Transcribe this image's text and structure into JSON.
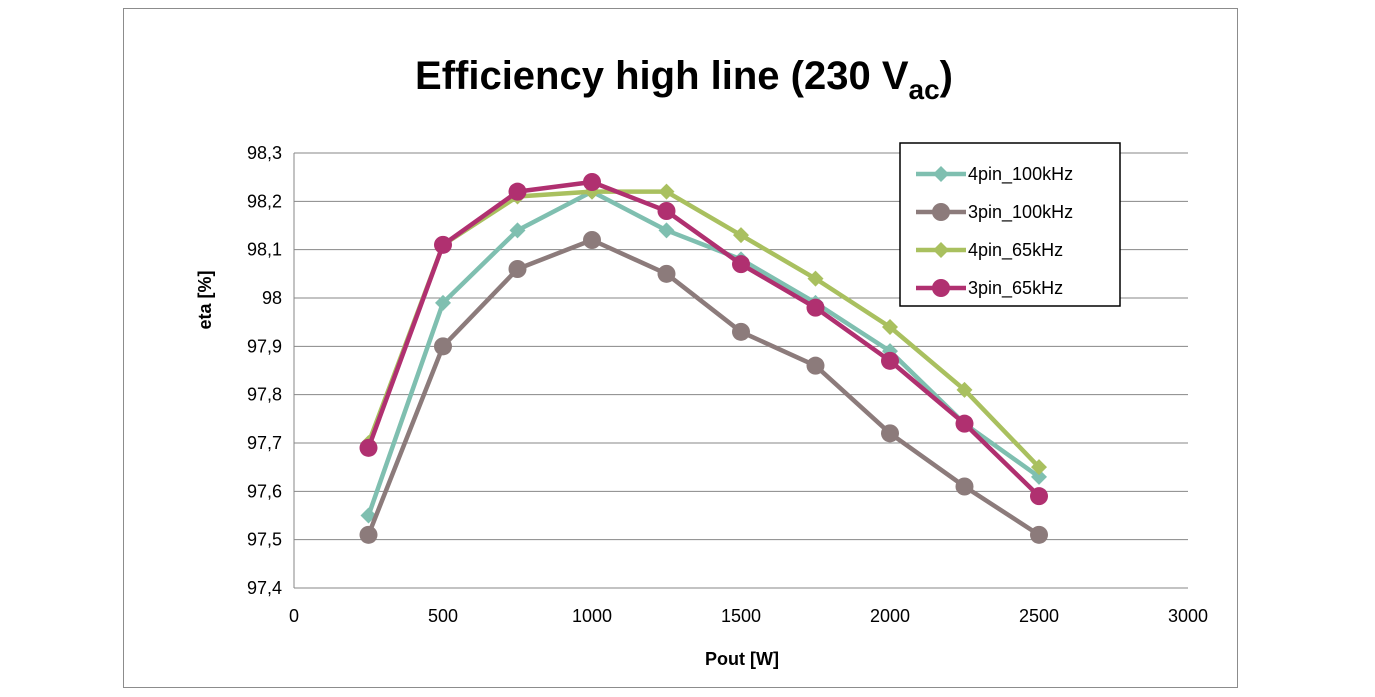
{
  "chart_data": {
    "type": "line",
    "title": "Efficiency high line (230 V",
    "title_subscript": "ac",
    "title_suffix": ")",
    "xlabel": "Pout [W]",
    "ylabel": "eta [%]",
    "xlim": [
      0,
      3000
    ],
    "ylim": [
      97.4,
      98.3
    ],
    "x_ticks": [
      "0",
      "500",
      "1000",
      "1500",
      "2000",
      "2500",
      "3000"
    ],
    "y_ticks": [
      "97,4",
      "97,5",
      "97,6",
      "97,7",
      "97,8",
      "97,9",
      "98",
      "98,1",
      "98,2",
      "98,3"
    ],
    "grid": true,
    "legend_position": "top-right",
    "x": [
      250,
      500,
      750,
      1000,
      1250,
      1500,
      1750,
      2000,
      2250,
      2500
    ],
    "series": [
      {
        "name": "4pin_100kHz",
        "color": "#7fbfb0",
        "marker": "diamond",
        "values": [
          97.55,
          97.99,
          98.14,
          98.22,
          98.14,
          98.08,
          97.99,
          97.89,
          97.74,
          97.63
        ]
      },
      {
        "name": "3pin_100kHz",
        "color": "#8c7b7b",
        "marker": "circle",
        "values": [
          97.51,
          97.9,
          98.06,
          98.12,
          98.05,
          97.93,
          97.86,
          97.72,
          97.61,
          97.51
        ]
      },
      {
        "name": "4pin_65kHz",
        "color": "#a9c05f",
        "marker": "diamond",
        "values": [
          97.7,
          98.11,
          98.21,
          98.22,
          98.22,
          98.13,
          98.04,
          97.94,
          97.81,
          97.65
        ]
      },
      {
        "name": "3pin_65kHz",
        "color": "#b03070",
        "marker": "circle",
        "values": [
          97.69,
          98.11,
          98.22,
          98.24,
          98.18,
          98.07,
          97.98,
          97.87,
          97.74,
          97.59
        ]
      }
    ]
  }
}
